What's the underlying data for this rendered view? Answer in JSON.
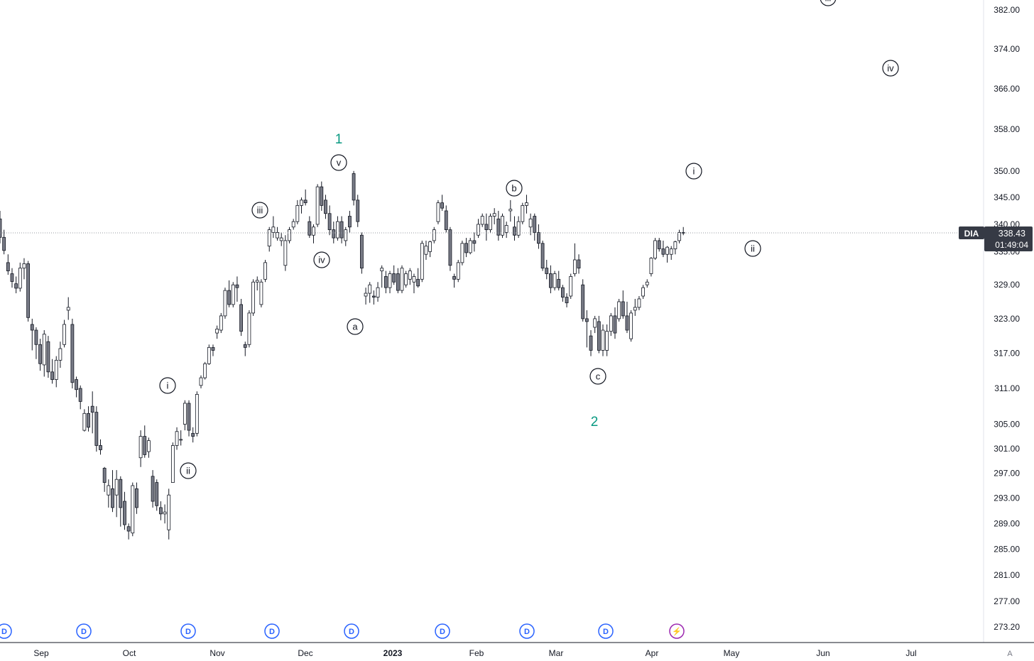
{
  "symbol": "DIA",
  "last_price": "338.43",
  "countdown": "01:49:04",
  "colors": {
    "candle_up_fill": "#ffffff",
    "candle_down_fill": "#787b86",
    "candle_outline": "#131722",
    "wave_teal": "#089981",
    "event_blue": "#2962ff",
    "event_purple": "#9c27b0",
    "price_tag_bg": "#363a45"
  },
  "price_axis": {
    "ticks": [
      "382.00",
      "374.00",
      "366.00",
      "358.00",
      "350.00",
      "345.00",
      "340.00",
      "335.00",
      "329.00",
      "323.00",
      "317.00",
      "311.00",
      "305.00",
      "301.00",
      "297.00",
      "293.00",
      "289.00",
      "285.00",
      "281.00",
      "277.00",
      "273.20"
    ],
    "scale": "log"
  },
  "time_axis": {
    "labels": [
      "Sep",
      "Oct",
      "Nov",
      "Dec",
      "2023",
      "Feb",
      "Mar",
      "Apr",
      "May",
      "Jun",
      "Jul"
    ],
    "corner_label": "A"
  },
  "event_markers": [
    {
      "type": "dividend",
      "label": "D"
    },
    {
      "type": "dividend",
      "label": "D"
    },
    {
      "type": "dividend",
      "label": "D"
    },
    {
      "type": "dividend",
      "label": "D"
    },
    {
      "type": "dividend",
      "label": "D"
    },
    {
      "type": "dividend",
      "label": "D"
    },
    {
      "type": "dividend",
      "label": "D"
    },
    {
      "type": "dividend",
      "label": "D"
    },
    {
      "type": "earnings",
      "label": "⚡"
    }
  ],
  "chart_data": {
    "type": "candlestick",
    "ylim": [
      272,
      384
    ],
    "candles": [
      [
        341.0,
        342.5,
        336.5,
        337.6
      ],
      [
        337.6,
        339.0,
        334.5,
        335.2
      ],
      [
        333.0,
        334.5,
        330.8,
        331.5
      ],
      [
        331.0,
        332.0,
        328.5,
        329.6
      ],
      [
        329.2,
        330.5,
        327.5,
        328.4
      ],
      [
        328.4,
        333.0,
        327.8,
        332.0
      ],
      [
        332.0,
        333.8,
        330.0,
        332.8
      ],
      [
        332.8,
        333.3,
        322.5,
        323.2
      ],
      [
        322.0,
        323.0,
        317.5,
        321.0
      ],
      [
        321.0,
        321.5,
        316.0,
        318.5
      ],
      [
        318.5,
        319.5,
        314.0,
        315.2
      ],
      [
        315.0,
        321.0,
        313.0,
        320.3
      ],
      [
        319.0,
        320.0,
        312.8,
        313.8
      ],
      [
        313.8,
        316.0,
        311.8,
        312.5
      ],
      [
        312.5,
        316.5,
        311.2,
        315.8
      ],
      [
        315.8,
        319.0,
        314.5,
        317.8
      ],
      [
        318.5,
        322.8,
        318.0,
        322.0
      ],
      [
        324.5,
        326.8,
        322.8,
        325.0
      ],
      [
        322.0,
        323.0,
        311.0,
        312.0
      ],
      [
        312.5,
        313.0,
        309.5,
        310.8
      ],
      [
        311.0,
        311.5,
        307.5,
        308.8
      ],
      [
        304.0,
        307.5,
        303.8,
        306.8
      ],
      [
        306.8,
        308.0,
        303.8,
        304.5
      ],
      [
        308.0,
        310.5,
        303.5,
        307.0
      ],
      [
        307.0,
        308.0,
        300.5,
        301.5
      ],
      [
        301.5,
        302.5,
        300.0,
        300.8
      ],
      [
        297.8,
        298.0,
        294.0,
        295.5
      ],
      [
        293.5,
        296.0,
        291.5,
        295.0
      ],
      [
        294.5,
        297.5,
        290.8,
        291.5
      ],
      [
        293.5,
        297.5,
        290.0,
        296.0
      ],
      [
        296.0,
        296.5,
        288.5,
        291.5
      ],
      [
        292.5,
        294.0,
        288.0,
        288.8
      ],
      [
        288.5,
        289.0,
        286.5,
        287.8
      ],
      [
        287.5,
        295.5,
        287.0,
        295.0
      ],
      [
        294.5,
        295.5,
        290.5,
        291.5
      ],
      [
        299.5,
        304.0,
        298.0,
        303.0
      ],
      [
        303.0,
        304.8,
        299.5,
        300.0
      ],
      [
        300.5,
        302.8,
        299.5,
        302.3
      ],
      [
        296.5,
        297.5,
        291.5,
        292.5
      ],
      [
        295.5,
        296.0,
        291.0,
        291.8
      ],
      [
        291.5,
        292.5,
        289.5,
        290.5
      ],
      [
        290.5,
        292.0,
        289.0,
        290.8
      ],
      [
        288.0,
        294.5,
        286.5,
        293.5
      ],
      [
        295.5,
        302.0,
        295.5,
        301.5
      ],
      [
        301.5,
        304.5,
        300.8,
        303.8
      ],
      [
        302.5,
        304.0,
        301.5,
        302.5
      ],
      [
        305.0,
        309.0,
        304.0,
        308.5
      ],
      [
        308.5,
        309.0,
        303.0,
        304.0
      ],
      [
        303.5,
        304.5,
        302.0,
        303.0
      ],
      [
        303.5,
        310.5,
        303.0,
        310.0
      ],
      [
        311.5,
        313.2,
        311.0,
        312.8
      ],
      [
        312.8,
        315.5,
        312.5,
        315.2
      ],
      [
        315.2,
        318.5,
        315.0,
        318.0
      ],
      [
        318.0,
        318.5,
        316.5,
        317.5
      ],
      [
        320.5,
        321.8,
        319.5,
        321.2
      ],
      [
        321.0,
        324.0,
        320.5,
        323.5
      ],
      [
        323.5,
        328.5,
        323.0,
        328.0
      ],
      [
        328.0,
        329.8,
        325.0,
        325.5
      ],
      [
        325.5,
        329.5,
        325.0,
        329.0
      ],
      [
        329.0,
        330.5,
        326.0,
        328.5
      ],
      [
        325.5,
        326.5,
        320.0,
        320.8
      ],
      [
        318.5,
        319.0,
        316.5,
        318.0
      ],
      [
        318.5,
        324.5,
        318.0,
        324.0
      ],
      [
        324.0,
        330.0,
        323.5,
        329.5
      ],
      [
        329.5,
        330.5,
        328.0,
        329.8
      ],
      [
        325.5,
        330.0,
        325.0,
        329.5
      ],
      [
        330.0,
        333.5,
        329.5,
        333.0
      ],
      [
        336.0,
        339.5,
        335.0,
        339.0
      ],
      [
        338.5,
        341.5,
        337.5,
        339.5
      ],
      [
        337.5,
        339.5,
        337.0,
        338.5
      ],
      [
        337.0,
        338.5,
        336.0,
        337.5
      ],
      [
        332.5,
        338.0,
        331.5,
        337.0
      ],
      [
        337.0,
        339.5,
        336.5,
        339.0
      ],
      [
        339.5,
        341.0,
        339.0,
        340.5
      ],
      [
        340.5,
        344.5,
        340.0,
        343.5
      ],
      [
        343.5,
        345.0,
        342.0,
        344.5
      ],
      [
        344.5,
        346.5,
        343.5,
        344.0
      ],
      [
        340.5,
        341.5,
        337.5,
        338.0
      ],
      [
        338.0,
        340.0,
        336.5,
        339.5
      ],
      [
        340.0,
        347.5,
        339.5,
        347.0
      ],
      [
        347.0,
        348.0,
        342.5,
        343.5
      ],
      [
        344.5,
        345.5,
        341.0,
        342.0
      ],
      [
        342.0,
        343.5,
        338.0,
        339.0
      ],
      [
        339.0,
        340.5,
        336.5,
        337.5
      ],
      [
        337.5,
        341.5,
        337.0,
        340.5
      ],
      [
        340.5,
        341.5,
        336.5,
        337.5
      ],
      [
        337.0,
        339.5,
        336.0,
        339.0
      ],
      [
        341.5,
        342.5,
        338.5,
        339.5
      ],
      [
        349.5,
        350.0,
        343.5,
        344.5
      ],
      [
        344.5,
        345.5,
        339.5,
        340.5
      ],
      [
        338.0,
        338.5,
        331.0,
        332.0
      ],
      [
        327.0,
        328.5,
        325.5,
        327.5
      ],
      [
        327.5,
        329.5,
        325.8,
        329.0
      ],
      [
        327.0,
        328.0,
        325.5,
        326.8
      ],
      [
        326.8,
        329.5,
        326.0,
        328.5
      ],
      [
        331.5,
        332.5,
        328.5,
        332.0
      ],
      [
        330.5,
        331.5,
        327.5,
        328.5
      ],
      [
        328.5,
        331.5,
        327.5,
        331.0
      ],
      [
        331.0,
        332.5,
        329.0,
        329.5
      ],
      [
        331.0,
        332.0,
        327.5,
        328.0
      ],
      [
        328.0,
        332.5,
        327.5,
        332.0
      ],
      [
        329.0,
        331.5,
        328.5,
        331.0
      ],
      [
        330.0,
        332.0,
        329.0,
        331.5
      ],
      [
        329.5,
        331.0,
        327.5,
        330.5
      ],
      [
        330.0,
        332.0,
        328.5,
        328.8
      ],
      [
        330.0,
        337.0,
        329.5,
        336.5
      ],
      [
        334.5,
        337.0,
        333.5,
        336.0
      ],
      [
        335.0,
        337.0,
        334.0,
        336.8
      ],
      [
        337.0,
        339.5,
        336.5,
        339.0
      ],
      [
        340.5,
        344.5,
        340.0,
        344.0
      ],
      [
        344.0,
        345.5,
        342.5,
        343.0
      ],
      [
        342.5,
        343.5,
        338.5,
        339.0
      ],
      [
        339.0,
        339.5,
        331.5,
        332.5
      ],
      [
        330.5,
        331.0,
        328.5,
        330.0
      ],
      [
        330.0,
        333.5,
        329.5,
        333.0
      ],
      [
        333.0,
        337.0,
        332.5,
        336.5
      ],
      [
        336.5,
        337.5,
        334.0,
        334.8
      ],
      [
        334.8,
        337.5,
        334.5,
        337.0
      ],
      [
        337.0,
        338.5,
        335.0,
        336.5
      ],
      [
        338.0,
        341.0,
        337.5,
        340.0
      ],
      [
        340.0,
        342.0,
        339.5,
        341.5
      ],
      [
        340.0,
        342.0,
        337.0,
        339.0
      ],
      [
        339.0,
        342.0,
        338.5,
        341.5
      ],
      [
        341.5,
        343.0,
        340.0,
        342.0
      ],
      [
        341.0,
        342.5,
        337.0,
        338.0
      ],
      [
        338.0,
        342.0,
        337.5,
        341.5
      ],
      [
        338.5,
        340.5,
        337.5,
        339.8
      ],
      [
        342.5,
        344.5,
        340.5,
        342.8
      ],
      [
        339.5,
        341.5,
        337.0,
        338.0
      ],
      [
        338.0,
        341.5,
        337.5,
        340.5
      ],
      [
        340.5,
        344.0,
        340.0,
        343.5
      ],
      [
        343.5,
        345.5,
        342.0,
        344.0
      ],
      [
        339.5,
        342.0,
        338.0,
        341.0
      ],
      [
        341.5,
        342.0,
        337.0,
        338.5
      ],
      [
        338.5,
        340.0,
        335.5,
        336.5
      ],
      [
        336.5,
        337.0,
        331.5,
        332.0
      ],
      [
        332.0,
        333.5,
        330.0,
        331.0
      ],
      [
        331.0,
        332.5,
        327.5,
        328.5
      ],
      [
        328.5,
        331.5,
        328.0,
        331.0
      ],
      [
        330.0,
        331.5,
        328.0,
        328.5
      ],
      [
        328.5,
        329.0,
        326.0,
        326.8
      ],
      [
        326.8,
        327.5,
        325.0,
        325.8
      ],
      [
        327.0,
        331.0,
        326.5,
        330.5
      ],
      [
        331.0,
        336.5,
        330.5,
        333.5
      ],
      [
        333.5,
        334.5,
        331.0,
        332.0
      ],
      [
        329.0,
        330.0,
        322.5,
        323.0
      ],
      [
        323.0,
        324.5,
        318.0,
        322.5
      ],
      [
        320.0,
        321.0,
        316.5,
        317.5
      ],
      [
        321.5,
        323.5,
        320.5,
        323.0
      ],
      [
        322.5,
        323.5,
        317.0,
        317.5
      ],
      [
        317.5,
        322.0,
        316.5,
        321.0
      ],
      [
        317.5,
        322.0,
        316.5,
        320.8
      ],
      [
        320.8,
        324.0,
        320.0,
        323.5
      ],
      [
        323.5,
        325.0,
        319.5,
        320.5
      ],
      [
        323.0,
        326.5,
        322.5,
        326.0
      ],
      [
        326.0,
        328.0,
        323.0,
        323.5
      ],
      [
        323.5,
        326.0,
        320.5,
        321.0
      ],
      [
        319.5,
        324.5,
        319.0,
        324.0
      ],
      [
        324.5,
        326.5,
        323.5,
        325.0
      ],
      [
        325.0,
        327.0,
        324.5,
        326.5
      ],
      [
        327.0,
        329.0,
        326.5,
        328.5
      ],
      [
        329.0,
        330.0,
        328.5,
        329.5
      ],
      [
        331.0,
        334.0,
        330.5,
        333.8
      ],
      [
        333.8,
        337.5,
        333.5,
        337.0
      ],
      [
        337.0,
        337.5,
        335.0,
        335.5
      ],
      [
        335.5,
        337.0,
        334.0,
        334.5
      ],
      [
        334.5,
        336.0,
        333.0,
        335.8
      ],
      [
        334.5,
        336.0,
        333.5,
        335.5
      ],
      [
        335.5,
        337.0,
        334.5,
        336.8
      ],
      [
        337.0,
        339.0,
        336.5,
        338.5
      ],
      [
        338.5,
        339.5,
        338.0,
        338.43
      ]
    ]
  },
  "wave_labels": [
    {
      "text": "1",
      "big": true
    },
    {
      "text": "2",
      "big": true
    },
    {
      "text": "i"
    },
    {
      "text": "ii"
    },
    {
      "text": "iii"
    },
    {
      "text": "iv"
    },
    {
      "text": "v"
    },
    {
      "text": "a"
    },
    {
      "text": "b"
    },
    {
      "text": "c"
    },
    {
      "text": "i"
    },
    {
      "text": "ii"
    },
    {
      "text": "iii"
    },
    {
      "text": "iv"
    }
  ]
}
